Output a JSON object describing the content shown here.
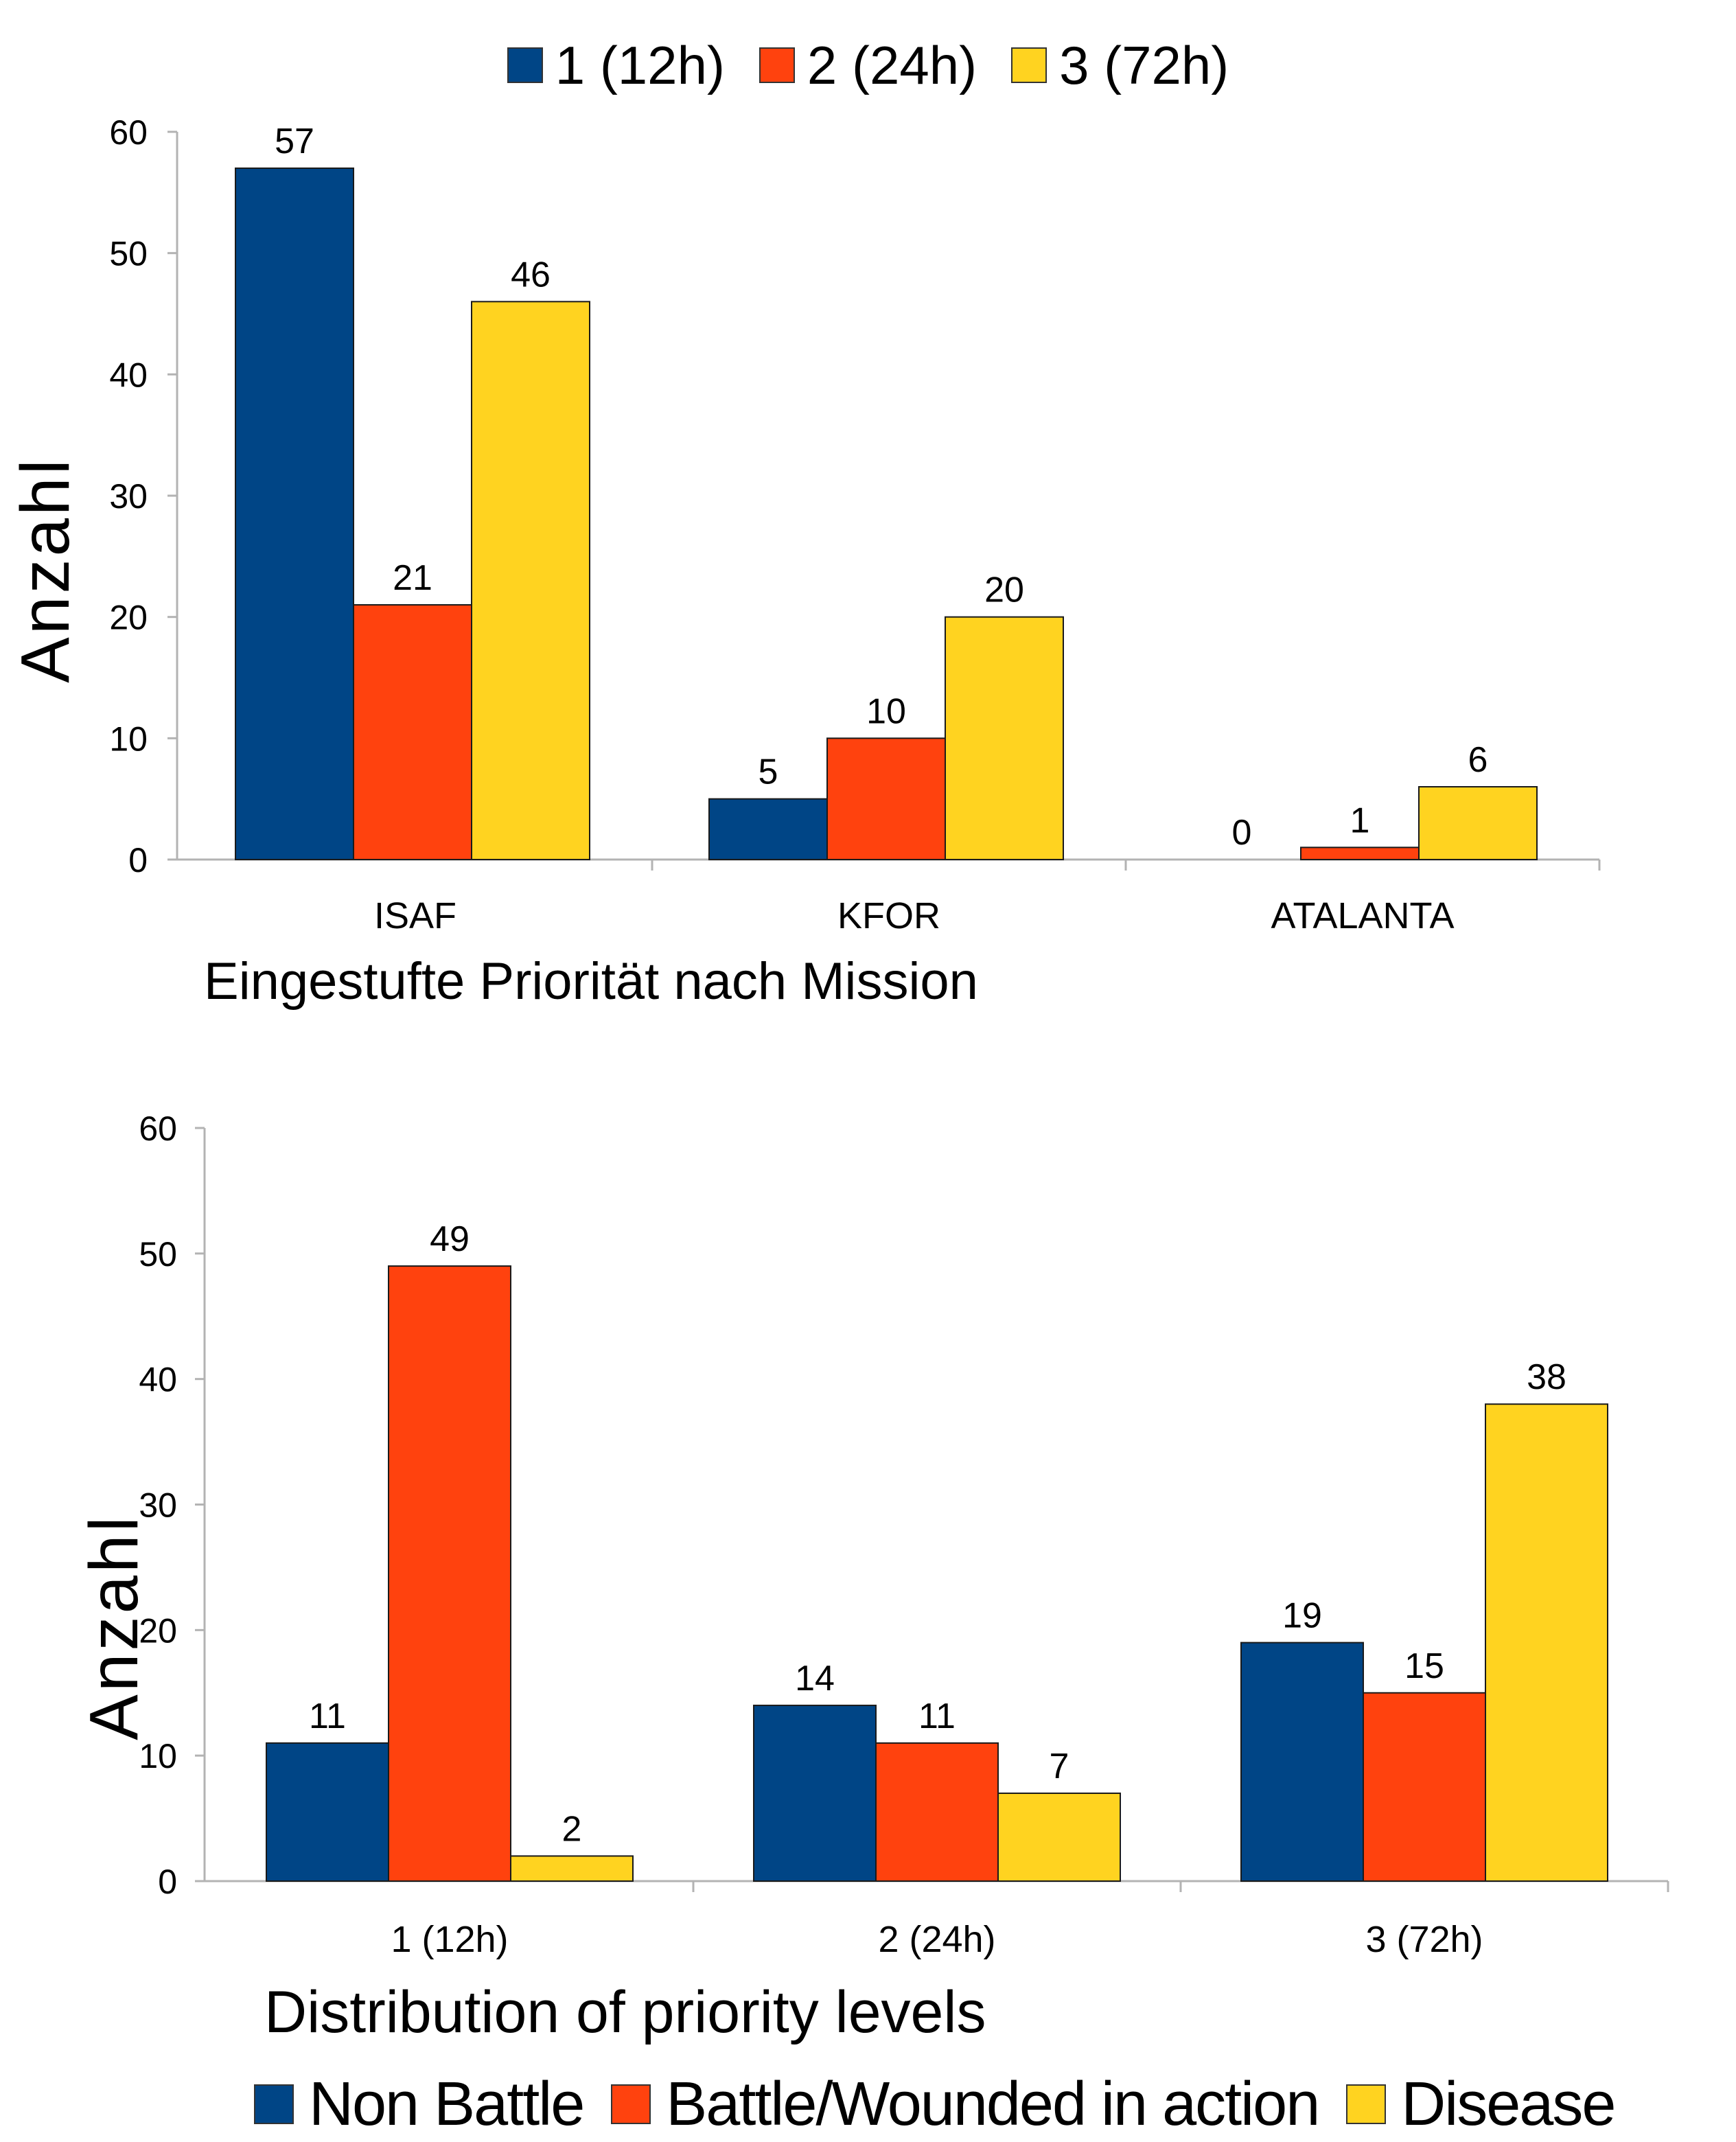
{
  "colors": {
    "blue": "#004586",
    "red": "#ff420e",
    "yellow": "#ffd320"
  },
  "chart_data": [
    {
      "type": "bar",
      "title": "Eingestufte Priorität nach Mission",
      "ylabel": "Anzahl",
      "xlabel": "",
      "ylim": [
        0,
        60
      ],
      "yticks": [
        "0",
        "10",
        "20",
        "30",
        "40",
        "50",
        "60"
      ],
      "categories": [
        "ISAF",
        "KFOR",
        "ATALANTA"
      ],
      "series": [
        {
          "name": "1 (12h)",
          "color": "#004586",
          "values": [
            57,
            5,
            0
          ]
        },
        {
          "name": "2 (24h)",
          "color": "#ff420e",
          "values": [
            21,
            10,
            1
          ]
        },
        {
          "name": "3 (72h)",
          "color": "#ffd320",
          "values": [
            46,
            20,
            6
          ]
        }
      ],
      "legend_position": "top",
      "grid": false
    },
    {
      "type": "bar",
      "title": "Distribution of priority levels",
      "ylabel": "Anzahl",
      "xlabel": "",
      "ylim": [
        0,
        60
      ],
      "yticks": [
        "0",
        "10",
        "20",
        "30",
        "40",
        "50",
        "60"
      ],
      "categories": [
        "1 (12h)",
        "2 (24h)",
        "3 (72h)"
      ],
      "series": [
        {
          "name": "Non Battle",
          "color": "#004586",
          "values": [
            11,
            14,
            19
          ]
        },
        {
          "name": "Battle/Wounded in action",
          "color": "#ff420e",
          "values": [
            49,
            11,
            15
          ]
        },
        {
          "name": "Disease",
          "color": "#ffd320",
          "values": [
            2,
            7,
            38
          ]
        }
      ],
      "legend_position": "bottom",
      "grid": false
    }
  ]
}
